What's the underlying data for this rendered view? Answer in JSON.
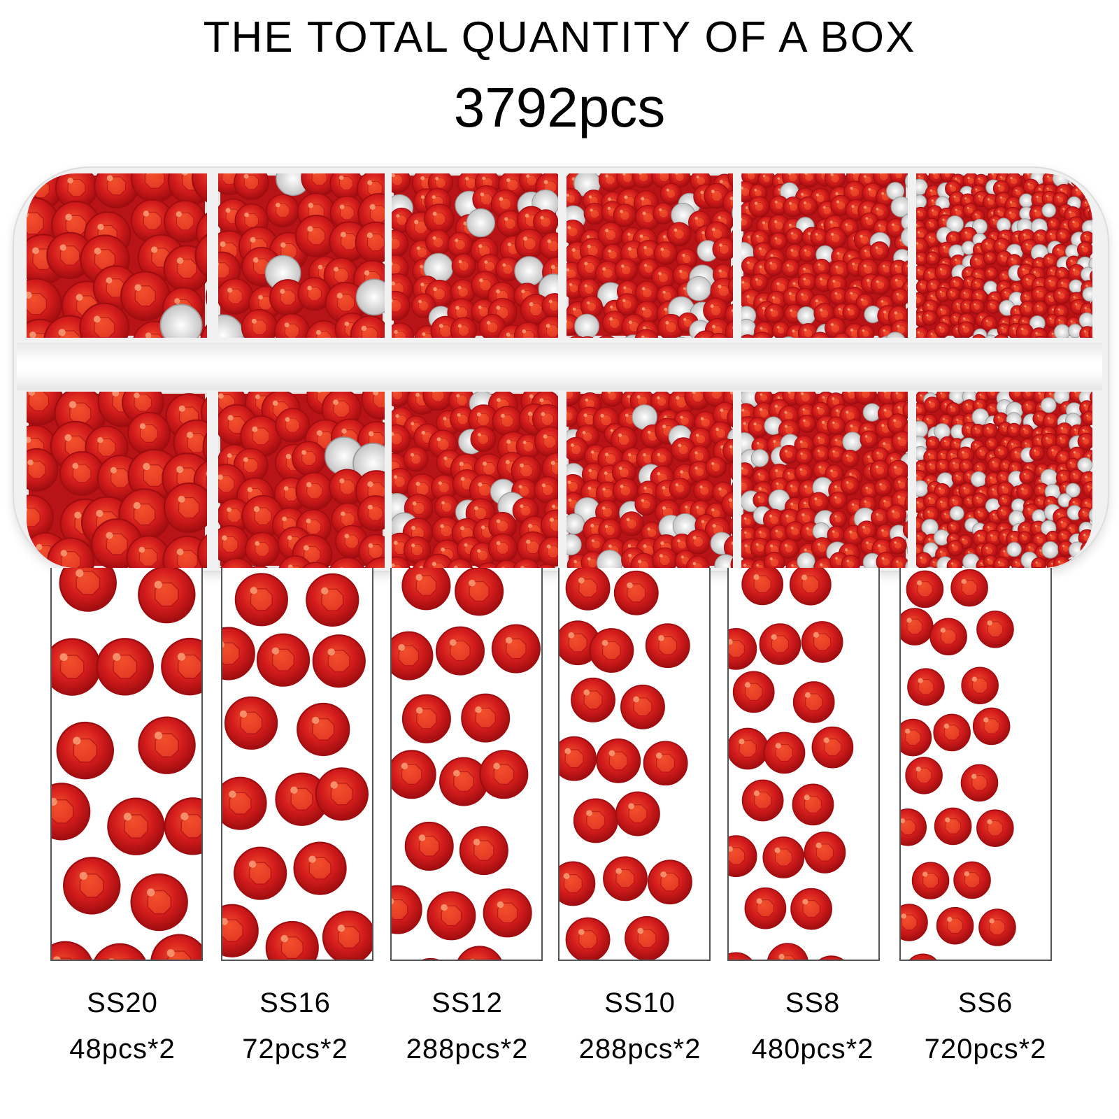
{
  "header": {
    "title": "THE TOTAL QUANTITY OF A BOX",
    "total": "3792pcs"
  },
  "colors": {
    "gem_dark": "#a00d10",
    "gem_mid": "#d41c1c",
    "gem_light": "#f2502c",
    "tray": "#f1f1f1"
  },
  "sizes": [
    {
      "size": "SS20",
      "count": "48pcs*2"
    },
    {
      "size": "SS16",
      "count": "72pcs*2"
    },
    {
      "size": "SS12",
      "count": "288pcs*2"
    },
    {
      "size": "SS10",
      "count": "288pcs*2"
    },
    {
      "size": "SS8",
      "count": "480pcs*2"
    },
    {
      "size": "SS6",
      "count": "720pcs*2"
    }
  ]
}
